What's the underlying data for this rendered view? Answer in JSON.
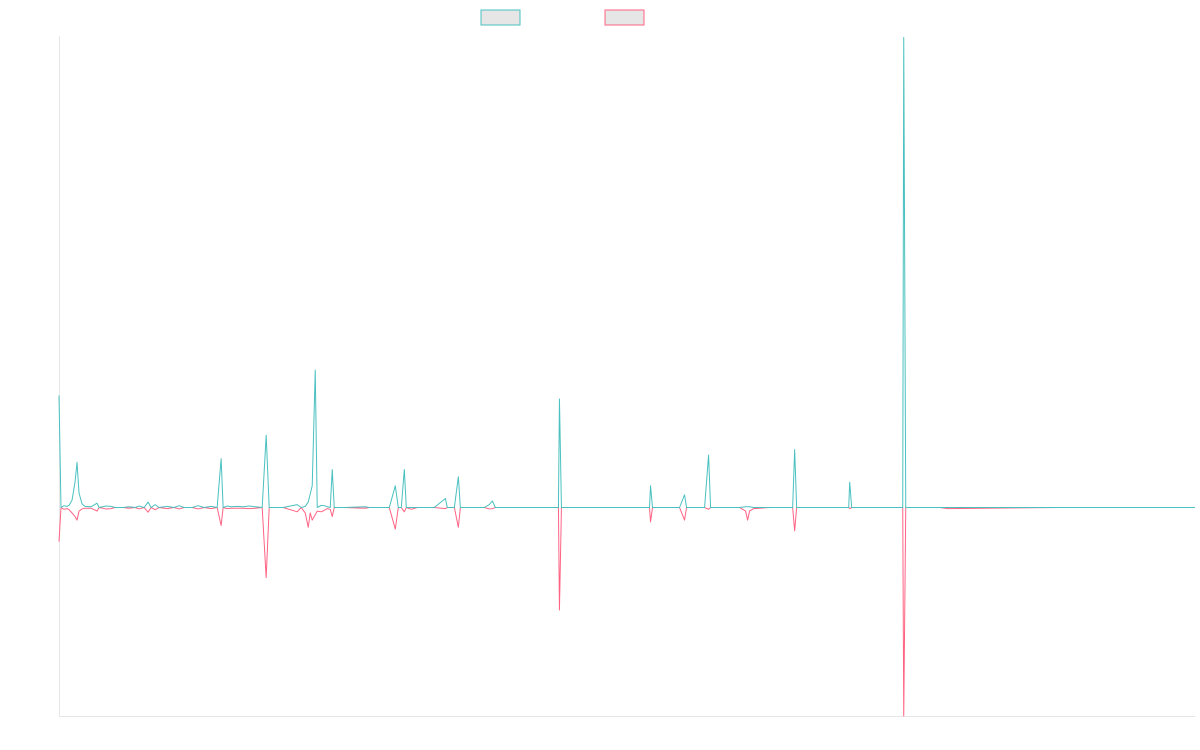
{
  "chart_data": {
    "type": "line",
    "title": "",
    "xlabel": "",
    "ylabel": "",
    "grid": false,
    "legend_position": "top-center",
    "xlim": [
      0,
      1135
    ],
    "ylim": [
      -1,
      1
    ],
    "series": [
      {
        "name": "",
        "color": "#4bc0c0",
        "points": [
          [
            0,
            0.31
          ],
          [
            2,
            0.0
          ],
          [
            5,
            0.005
          ],
          [
            8,
            0.003
          ],
          [
            10,
            0.006
          ],
          [
            13,
            0.02
          ],
          [
            16,
            0.07
          ],
          [
            18,
            0.125
          ],
          [
            20,
            0.04
          ],
          [
            23,
            0.01
          ],
          [
            26,
            0.003
          ],
          [
            32,
            0.002
          ],
          [
            38,
            0.012
          ],
          [
            40,
            0.0
          ],
          [
            47,
            0.004
          ],
          [
            52,
            0.003
          ],
          [
            56,
            0.0
          ],
          [
            64,
            0.0
          ],
          [
            70,
            0.002
          ],
          [
            76,
            0.0
          ],
          [
            80,
            0.004
          ],
          [
            85,
            0.0
          ],
          [
            89,
            0.015
          ],
          [
            92,
            0.0
          ],
          [
            96,
            0.008
          ],
          [
            100,
            0.0
          ],
          [
            108,
            0.003
          ],
          [
            115,
            0.0
          ],
          [
            120,
            0.005
          ],
          [
            125,
            0.0
          ],
          [
            133,
            0.0
          ],
          [
            139,
            0.005
          ],
          [
            145,
            0.0
          ],
          [
            152,
            0.003
          ],
          [
            158,
            0.0
          ],
          [
            162,
            0.135
          ],
          [
            164,
            0.0
          ],
          [
            168,
            0.004
          ],
          [
            172,
            0.002
          ],
          [
            178,
            0.003
          ],
          [
            184,
            0.002
          ],
          [
            190,
            0.004
          ],
          [
            196,
            0.002
          ],
          [
            203,
            0.0
          ],
          [
            207,
            0.2
          ],
          [
            210,
            0.0
          ],
          [
            218,
            0.0
          ],
          [
            224,
            0.0
          ],
          [
            238,
            0.008
          ],
          [
            242,
            0.0
          ],
          [
            246,
            0.003
          ],
          [
            249,
            0.015
          ],
          [
            253,
            0.06
          ],
          [
            256,
            0.38
          ],
          [
            258,
            0.0
          ],
          [
            262,
            0.006
          ],
          [
            265,
            0.005
          ],
          [
            268,
            0.002
          ],
          [
            271,
            0.0
          ],
          [
            273,
            0.105
          ],
          [
            275,
            0.0
          ],
          [
            285,
            0.0
          ],
          [
            306,
            0.002
          ],
          [
            310,
            0.0
          ],
          [
            330,
            0.0
          ],
          [
            336,
            0.06
          ],
          [
            339,
            0.0
          ],
          [
            342,
            0.0
          ],
          [
            345,
            0.105
          ],
          [
            347,
            0.0
          ],
          [
            352,
            0.0
          ],
          [
            358,
            0.0
          ],
          [
            375,
            0.0
          ],
          [
            386,
            0.025
          ],
          [
            388,
            0.0
          ],
          [
            395,
            0.0
          ],
          [
            399,
            0.085
          ],
          [
            401,
            0.0
          ],
          [
            410,
            0.0
          ],
          [
            425,
            0.0
          ],
          [
            430,
            0.008
          ],
          [
            433,
            0.018
          ],
          [
            436,
            0.0
          ],
          [
            447,
            0.0
          ],
          [
            460,
            0.0
          ],
          [
            480,
            0.0
          ],
          [
            490,
            0.0
          ],
          [
            499,
            0.0
          ],
          [
            500,
            0.3
          ],
          [
            502,
            0.0
          ],
          [
            540,
            0.0
          ],
          [
            590,
            0.0
          ],
          [
            591,
            0.06
          ],
          [
            593,
            0.0
          ],
          [
            620,
            0.0
          ],
          [
            625,
            0.035
          ],
          [
            627,
            0.0
          ],
          [
            645,
            0.0
          ],
          [
            649,
            0.145
          ],
          [
            651,
            0.0
          ],
          [
            680,
            0.0
          ],
          [
            686,
            0.002
          ],
          [
            690,
            0.002
          ],
          [
            694,
            0.0
          ],
          [
            710,
            0.0
          ],
          [
            733,
            0.0
          ],
          [
            735,
            0.16
          ],
          [
            737,
            0.0
          ],
          [
            780,
            0.0
          ],
          [
            789,
            0.0
          ],
          [
            790,
            0.07
          ],
          [
            792,
            0.0
          ],
          [
            843,
            0.0
          ],
          [
            844,
            1.3
          ],
          [
            846,
            0.0
          ],
          [
            850,
            0.0
          ],
          [
            880,
            0.0
          ],
          [
            888,
            0.0
          ],
          [
            1000,
            0.0
          ],
          [
            1135,
            0.0
          ]
        ]
      },
      {
        "name": "",
        "color": "#ff6384",
        "points": [
          [
            0,
            -0.095
          ],
          [
            2,
            0.0
          ],
          [
            5,
            -0.005
          ],
          [
            8,
            -0.003
          ],
          [
            10,
            -0.006
          ],
          [
            13,
            -0.015
          ],
          [
            16,
            -0.025
          ],
          [
            18,
            -0.035
          ],
          [
            20,
            -0.01
          ],
          [
            23,
            -0.004
          ],
          [
            26,
            -0.002
          ],
          [
            32,
            -0.002
          ],
          [
            38,
            -0.01
          ],
          [
            40,
            0.0
          ],
          [
            47,
            -0.004
          ],
          [
            52,
            -0.003
          ],
          [
            56,
            0.0
          ],
          [
            64,
            0.0
          ],
          [
            70,
            -0.002
          ],
          [
            76,
            0.0
          ],
          [
            80,
            -0.004
          ],
          [
            85,
            0.0
          ],
          [
            89,
            -0.013
          ],
          [
            92,
            0.0
          ],
          [
            96,
            -0.006
          ],
          [
            100,
            0.0
          ],
          [
            108,
            -0.003
          ],
          [
            115,
            0.0
          ],
          [
            120,
            -0.004
          ],
          [
            125,
            0.0
          ],
          [
            133,
            0.0
          ],
          [
            139,
            -0.004
          ],
          [
            145,
            0.0
          ],
          [
            152,
            -0.003
          ],
          [
            158,
            0.0
          ],
          [
            162,
            -0.05
          ],
          [
            164,
            0.0
          ],
          [
            168,
            -0.003
          ],
          [
            172,
            -0.002
          ],
          [
            178,
            -0.002
          ],
          [
            184,
            -0.002
          ],
          [
            190,
            -0.003
          ],
          [
            196,
            -0.002
          ],
          [
            203,
            0.0
          ],
          [
            207,
            -0.195
          ],
          [
            210,
            0.0
          ],
          [
            218,
            0.0
          ],
          [
            224,
            0.0
          ],
          [
            238,
            -0.012
          ],
          [
            242,
            0.0
          ],
          [
            246,
            -0.015
          ],
          [
            249,
            -0.055
          ],
          [
            251,
            -0.015
          ],
          [
            253,
            -0.035
          ],
          [
            256,
            -0.02
          ],
          [
            258,
            -0.01
          ],
          [
            262,
            -0.012
          ],
          [
            265,
            -0.008
          ],
          [
            268,
            -0.003
          ],
          [
            271,
            -0.005
          ],
          [
            273,
            -0.025
          ],
          [
            275,
            0.0
          ],
          [
            285,
            0.0
          ],
          [
            306,
            -0.002
          ],
          [
            310,
            0.0
          ],
          [
            330,
            0.0
          ],
          [
            336,
            -0.06
          ],
          [
            339,
            0.0
          ],
          [
            342,
            0.0
          ],
          [
            345,
            -0.012
          ],
          [
            347,
            0.0
          ],
          [
            352,
            -0.005
          ],
          [
            358,
            0.0
          ],
          [
            375,
            0.0
          ],
          [
            386,
            -0.003
          ],
          [
            388,
            0.0
          ],
          [
            395,
            0.0
          ],
          [
            399,
            -0.055
          ],
          [
            401,
            0.0
          ],
          [
            410,
            0.0
          ],
          [
            425,
            0.0
          ],
          [
            430,
            -0.004
          ],
          [
            433,
            -0.003
          ],
          [
            436,
            0.0
          ],
          [
            447,
            0.0
          ],
          [
            460,
            0.0
          ],
          [
            480,
            0.0
          ],
          [
            490,
            0.0
          ],
          [
            499,
            0.0
          ],
          [
            500,
            -0.285
          ],
          [
            502,
            0.0
          ],
          [
            540,
            0.0
          ],
          [
            590,
            0.0
          ],
          [
            591,
            -0.04
          ],
          [
            593,
            0.0
          ],
          [
            620,
            0.0
          ],
          [
            625,
            -0.035
          ],
          [
            627,
            0.0
          ],
          [
            645,
            0.0
          ],
          [
            649,
            -0.005
          ],
          [
            651,
            0.0
          ],
          [
            680,
            0.0
          ],
          [
            686,
            -0.01
          ],
          [
            688,
            -0.035
          ],
          [
            690,
            -0.01
          ],
          [
            694,
            -0.003
          ],
          [
            710,
            0.0
          ],
          [
            733,
            0.0
          ],
          [
            735,
            -0.065
          ],
          [
            737,
            0.0
          ],
          [
            780,
            0.0
          ],
          [
            789,
            0.0
          ],
          [
            790,
            -0.003
          ],
          [
            792,
            0.0
          ],
          [
            843,
            0.0
          ],
          [
            844,
            -0.58
          ],
          [
            846,
            0.0
          ],
          [
            850,
            0.0
          ],
          [
            880,
            0.0
          ],
          [
            888,
            -0.003
          ],
          [
            1000,
            0.0
          ],
          [
            1135,
            0.0
          ]
        ]
      }
    ]
  }
}
